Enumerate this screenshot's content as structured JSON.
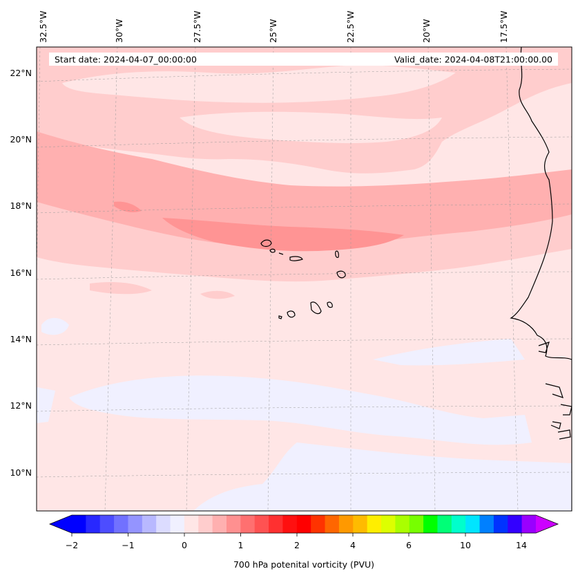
{
  "header": {
    "start_date": "Start date: 2024-04-07_00:00:00",
    "valid_date": "Valid_date: 2024-04-08T21:00:00.00"
  },
  "map": {
    "lon_labels": [
      "32.5°W",
      "30°W",
      "27.5°W",
      "25°W",
      "22.5°W",
      "20°W",
      "17.5°W"
    ],
    "lat_labels": [
      "22°N",
      "20°N",
      "18°N",
      "16°N",
      "14°N",
      "12°N",
      "10°N"
    ],
    "field": "700 hPa potential vorticity",
    "region_note": "Cape Verde islands and West African coast"
  },
  "colorbar": {
    "label": "700 hPa potenital vorticity (PVU)",
    "tick_labels": [
      "−2",
      "−1",
      "0",
      "1",
      "2",
      "4",
      "6",
      "10",
      "14"
    ],
    "colors": [
      "#0000ff",
      "#2828ff",
      "#4d4dff",
      "#7171ff",
      "#9494ff",
      "#b8b8ff",
      "#dcdcff",
      "#f0f0ff",
      "#ffe6e6",
      "#ffcdcd",
      "#ffb0b0",
      "#ff9090",
      "#ff7070",
      "#ff5252",
      "#ff3030",
      "#ff1010",
      "#ff0000",
      "#ff3300",
      "#ff6600",
      "#ff9900",
      "#ffbb00",
      "#ffee00",
      "#ddff00",
      "#aaff00",
      "#77ff00",
      "#00ff00",
      "#00ff77",
      "#00ffcc",
      "#00e5ff",
      "#0080ff",
      "#0033ff",
      "#3300ff",
      "#9900ff"
    ],
    "extend_low": "#0000ff",
    "extend_high": "#cc00ff"
  },
  "colors": {
    "base": "#ffe6e6",
    "light_blue": "#f0f0ff",
    "pink1": "#ffcdcd",
    "pink2": "#ffb0b0",
    "pink3": "#ff9494",
    "coast": "#000000"
  }
}
